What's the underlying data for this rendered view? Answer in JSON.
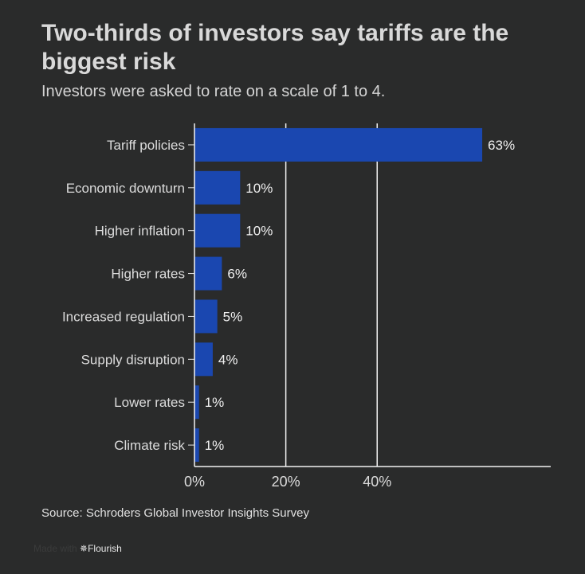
{
  "title": "Two-thirds of investors say tariffs are the biggest risk",
  "subtitle": "Investors were asked to rate on a scale of 1 to 4.",
  "source": "Source: Schroders Global Investor Insights Survey",
  "credit": {
    "prefix": "Made with",
    "brand": "✵Flourish"
  },
  "chart_data": {
    "type": "bar",
    "orientation": "horizontal",
    "categories": [
      "Tariff policies",
      "Economic downturn",
      "Higher inflation",
      "Higher rates",
      "Increased regulation",
      "Supply disruption",
      "Lower rates",
      "Climate risk"
    ],
    "values": [
      63,
      10,
      10,
      6,
      5,
      4,
      1,
      1
    ],
    "value_labels": [
      "63%",
      "10%",
      "10%",
      "6%",
      "5%",
      "4%",
      "1%",
      "1%"
    ],
    "xlim": [
      0,
      78
    ],
    "xticks": [
      0,
      20,
      40
    ],
    "xtick_labels": [
      "0%",
      "20%",
      "40%"
    ],
    "grid": true,
    "bar_color": "#1a47b0"
  }
}
